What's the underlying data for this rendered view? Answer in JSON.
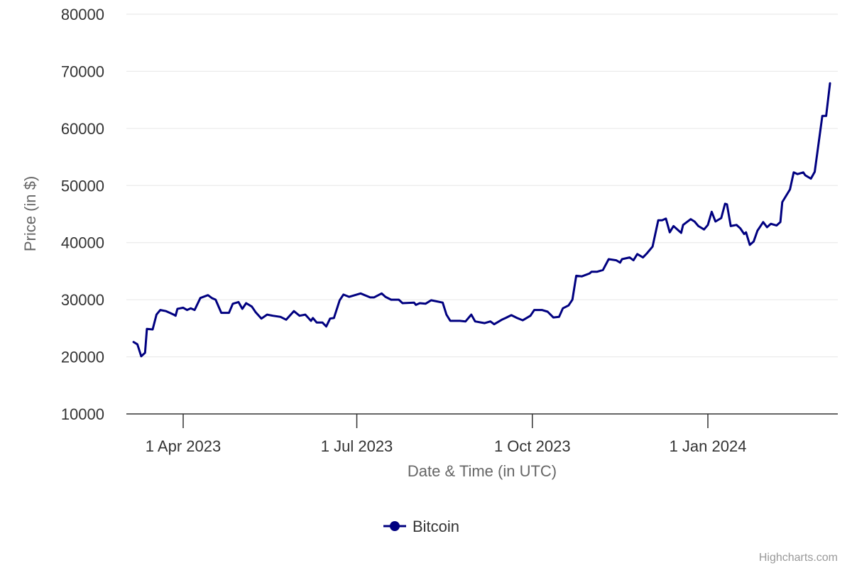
{
  "chart_data": {
    "type": "line",
    "title": "",
    "xlabel": "Date & Time (in UTC)",
    "ylabel": "Price (in $)",
    "ylim": [
      10000,
      80000
    ],
    "yticks": [
      "10000",
      "20000",
      "30000",
      "40000",
      "50000",
      "60000",
      "70000",
      "80000"
    ],
    "xticks": [
      {
        "date": "2023-04-01",
        "label": "1 Apr 2023"
      },
      {
        "date": "2023-07-01",
        "label": "1 Jul 2023"
      },
      {
        "date": "2023-10-01",
        "label": "1 Oct 2023"
      },
      {
        "date": "2024-01-01",
        "label": "1 Jan 2024"
      }
    ],
    "xlim": [
      "2023-03-03",
      "2024-03-08"
    ],
    "grid": true,
    "legend_position": "bottom",
    "colors": {
      "series": "#000080",
      "grid": "#e6e6e6",
      "axis": "#333333"
    },
    "series": [
      {
        "name": "Bitcoin",
        "points": [
          [
            "2023-03-06",
            22600
          ],
          [
            "2023-03-08",
            22200
          ],
          [
            "2023-03-10",
            20100
          ],
          [
            "2023-03-12",
            20700
          ],
          [
            "2023-03-13",
            24900
          ],
          [
            "2023-03-16",
            24800
          ],
          [
            "2023-03-18",
            27400
          ],
          [
            "2023-03-20",
            28200
          ],
          [
            "2023-03-23",
            28000
          ],
          [
            "2023-03-25",
            27700
          ],
          [
            "2023-03-27",
            27400
          ],
          [
            "2023-03-28",
            27200
          ],
          [
            "2023-03-29",
            28400
          ],
          [
            "2023-04-01",
            28600
          ],
          [
            "2023-04-03",
            28200
          ],
          [
            "2023-04-05",
            28500
          ],
          [
            "2023-04-07",
            28200
          ],
          [
            "2023-04-10",
            30300
          ],
          [
            "2023-04-14",
            30800
          ],
          [
            "2023-04-16",
            30300
          ],
          [
            "2023-04-18",
            30000
          ],
          [
            "2023-04-21",
            27700
          ],
          [
            "2023-04-25",
            27700
          ],
          [
            "2023-04-27",
            29300
          ],
          [
            "2023-04-30",
            29600
          ],
          [
            "2023-05-02",
            28400
          ],
          [
            "2023-05-04",
            29400
          ],
          [
            "2023-05-07",
            28800
          ],
          [
            "2023-05-09",
            27800
          ],
          [
            "2023-05-12",
            26700
          ],
          [
            "2023-05-15",
            27400
          ],
          [
            "2023-05-18",
            27200
          ],
          [
            "2023-05-22",
            27000
          ],
          [
            "2023-05-25",
            26500
          ],
          [
            "2023-05-29",
            28000
          ],
          [
            "2023-06-01",
            27200
          ],
          [
            "2023-06-04",
            27400
          ],
          [
            "2023-06-07",
            26300
          ],
          [
            "2023-06-08",
            26800
          ],
          [
            "2023-06-10",
            26000
          ],
          [
            "2023-06-13",
            26000
          ],
          [
            "2023-06-15",
            25300
          ],
          [
            "2023-06-17",
            26700
          ],
          [
            "2023-06-19",
            26800
          ],
          [
            "2023-06-22",
            29900
          ],
          [
            "2023-06-24",
            30900
          ],
          [
            "2023-06-27",
            30500
          ],
          [
            "2023-07-03",
            31100
          ],
          [
            "2023-07-08",
            30400
          ],
          [
            "2023-07-10",
            30400
          ],
          [
            "2023-07-14",
            31100
          ],
          [
            "2023-07-16",
            30500
          ],
          [
            "2023-07-19",
            30000
          ],
          [
            "2023-07-23",
            30000
          ],
          [
            "2023-07-25",
            29400
          ],
          [
            "2023-07-31",
            29500
          ],
          [
            "2023-08-01",
            29100
          ],
          [
            "2023-08-03",
            29400
          ],
          [
            "2023-08-06",
            29300
          ],
          [
            "2023-08-09",
            29900
          ],
          [
            "2023-08-15",
            29500
          ],
          [
            "2023-08-17",
            27400
          ],
          [
            "2023-08-19",
            26300
          ],
          [
            "2023-08-24",
            26300
          ],
          [
            "2023-08-27",
            26200
          ],
          [
            "2023-08-30",
            27400
          ],
          [
            "2023-09-01",
            26200
          ],
          [
            "2023-09-06",
            25900
          ],
          [
            "2023-09-09",
            26200
          ],
          [
            "2023-09-11",
            25700
          ],
          [
            "2023-09-15",
            26500
          ],
          [
            "2023-09-17",
            26800
          ],
          [
            "2023-09-20",
            27300
          ],
          [
            "2023-09-23",
            26800
          ],
          [
            "2023-09-26",
            26400
          ],
          [
            "2023-09-30",
            27200
          ],
          [
            "2023-10-02",
            28200
          ],
          [
            "2023-10-06",
            28200
          ],
          [
            "2023-10-09",
            27900
          ],
          [
            "2023-10-12",
            26900
          ],
          [
            "2023-10-15",
            27000
          ],
          [
            "2023-10-17",
            28500
          ],
          [
            "2023-10-20",
            29000
          ],
          [
            "2023-10-22",
            30000
          ],
          [
            "2023-10-24",
            34200
          ],
          [
            "2023-10-27",
            34100
          ],
          [
            "2023-10-31",
            34600
          ],
          [
            "2023-11-01",
            34900
          ],
          [
            "2023-11-04",
            34900
          ],
          [
            "2023-11-07",
            35200
          ],
          [
            "2023-11-10",
            37100
          ],
          [
            "2023-11-14",
            36900
          ],
          [
            "2023-11-16",
            36500
          ],
          [
            "2023-11-17",
            37100
          ],
          [
            "2023-11-21",
            37400
          ],
          [
            "2023-11-23",
            36900
          ],
          [
            "2023-11-25",
            38000
          ],
          [
            "2023-11-28",
            37400
          ],
          [
            "2023-11-30",
            38100
          ],
          [
            "2023-12-03",
            39300
          ],
          [
            "2023-12-06",
            43900
          ],
          [
            "2023-12-08",
            43900
          ],
          [
            "2023-12-10",
            44200
          ],
          [
            "2023-12-12",
            41800
          ],
          [
            "2023-12-14",
            42900
          ],
          [
            "2023-12-18",
            41700
          ],
          [
            "2023-12-19",
            43100
          ],
          [
            "2023-12-23",
            44100
          ],
          [
            "2023-12-25",
            43700
          ],
          [
            "2023-12-27",
            42900
          ],
          [
            "2023-12-30",
            42300
          ],
          [
            "2024-01-01",
            43100
          ],
          [
            "2024-01-03",
            45400
          ],
          [
            "2024-01-05",
            43700
          ],
          [
            "2024-01-08",
            44300
          ],
          [
            "2024-01-10",
            46800
          ],
          [
            "2024-01-11",
            46700
          ],
          [
            "2024-01-13",
            42900
          ],
          [
            "2024-01-16",
            43100
          ],
          [
            "2024-01-18",
            42500
          ],
          [
            "2024-01-20",
            41500
          ],
          [
            "2024-01-21",
            41800
          ],
          [
            "2024-01-23",
            39600
          ],
          [
            "2024-01-25",
            40200
          ],
          [
            "2024-01-27",
            42100
          ],
          [
            "2024-01-30",
            43600
          ],
          [
            "2024-02-01",
            42700
          ],
          [
            "2024-02-03",
            43300
          ],
          [
            "2024-02-06",
            43000
          ],
          [
            "2024-02-08",
            43600
          ],
          [
            "2024-02-09",
            47100
          ],
          [
            "2024-02-13",
            49300
          ],
          [
            "2024-02-15",
            52300
          ],
          [
            "2024-02-17",
            52000
          ],
          [
            "2024-02-20",
            52300
          ],
          [
            "2024-02-21",
            51800
          ],
          [
            "2024-02-24",
            51200
          ],
          [
            "2024-02-26",
            52400
          ],
          [
            "2024-03-01",
            62200
          ],
          [
            "2024-03-03",
            62200
          ],
          [
            "2024-03-05",
            67900
          ]
        ]
      }
    ]
  },
  "credits": "Highcharts.com"
}
